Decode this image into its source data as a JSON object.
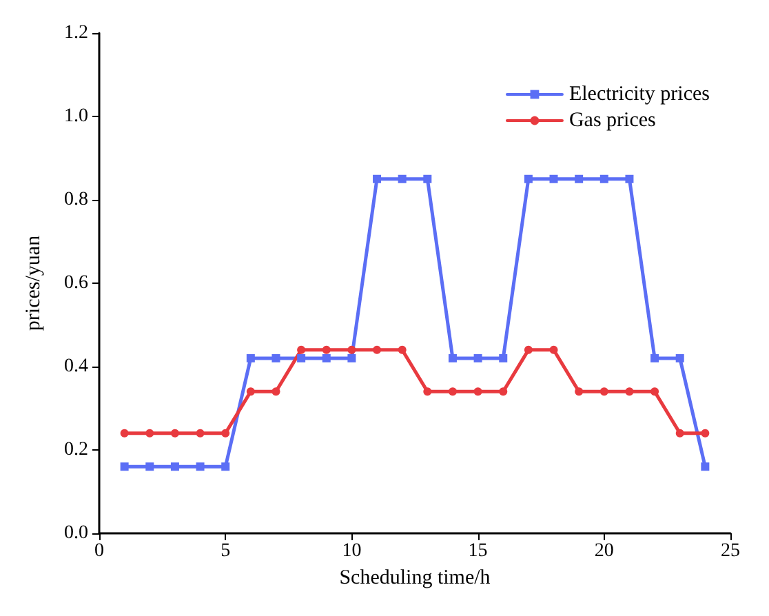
{
  "chart_data": {
    "type": "line",
    "xlabel": "Scheduling time/h",
    "ylabel": "prices/yuan",
    "x": [
      1,
      2,
      3,
      4,
      5,
      6,
      7,
      8,
      9,
      10,
      11,
      12,
      13,
      14,
      15,
      16,
      17,
      18,
      19,
      20,
      21,
      22,
      23,
      24
    ],
    "series": [
      {
        "name": "Electricity prices",
        "color": "#5b6ef5",
        "marker": "square",
        "values": [
          0.16,
          0.16,
          0.16,
          0.16,
          0.16,
          0.42,
          0.42,
          0.42,
          0.42,
          0.42,
          0.85,
          0.85,
          0.85,
          0.42,
          0.42,
          0.42,
          0.85,
          0.85,
          0.85,
          0.85,
          0.85,
          0.42,
          0.42,
          0.16
        ]
      },
      {
        "name": "Gas prices",
        "color": "#e83a3f",
        "marker": "circle",
        "values": [
          0.24,
          0.24,
          0.24,
          0.24,
          0.24,
          0.34,
          0.34,
          0.44,
          0.44,
          0.44,
          0.44,
          0.44,
          0.34,
          0.34,
          0.34,
          0.34,
          0.44,
          0.44,
          0.34,
          0.34,
          0.34,
          0.34,
          0.24,
          0.24
        ]
      }
    ],
    "xlim": [
      0,
      25
    ],
    "xticks": [
      0,
      5,
      10,
      15,
      20,
      25
    ],
    "ylim": [
      0,
      1.2
    ],
    "yticks": [
      {
        "value": 0,
        "label": "0.0"
      },
      0.2,
      0.4,
      0.6,
      0.8,
      {
        "value": 1,
        "label": "1.0"
      },
      1.2
    ],
    "legend": "top right",
    "grid": false,
    "line_style": "solid"
  }
}
